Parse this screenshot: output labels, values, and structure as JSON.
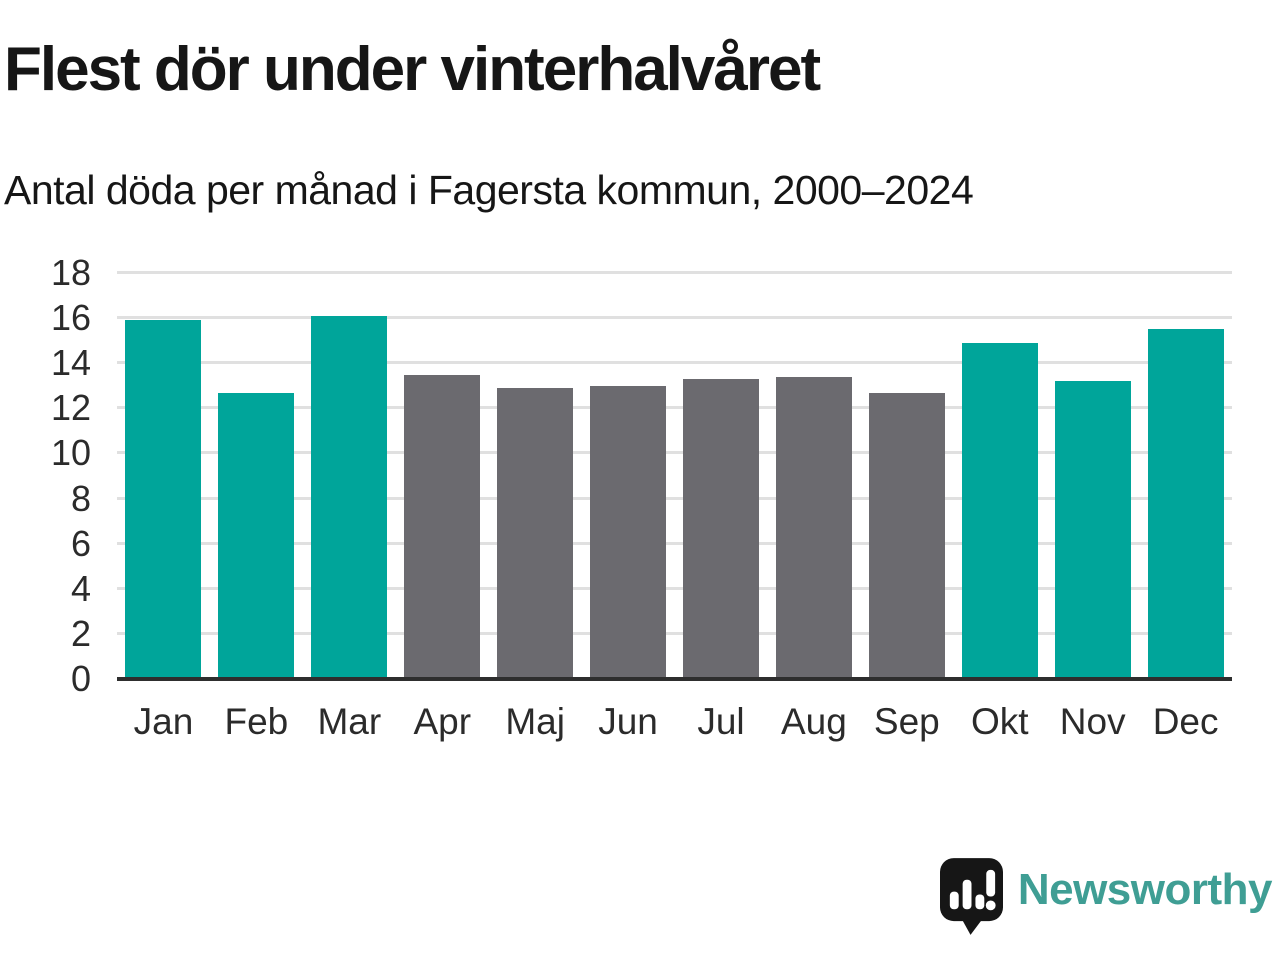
{
  "header": {
    "title": "Flest dör under vinterhalvåret",
    "subtitle": "Antal döda per månad i Fagersta kommun, 2000–2024"
  },
  "colors": {
    "teal": "#00a59a",
    "gray": "#6b6a6f",
    "grid": "#e0e0e0",
    "axis": "#2e2e2e",
    "text": "#161616",
    "brand": "#3f9e94"
  },
  "chart_data": {
    "type": "bar",
    "title": "Flest dör under vinterhalvåret",
    "subtitle": "Antal döda per månad i Fagersta kommun, 2000–2024",
    "categories": [
      "Jan",
      "Feb",
      "Mar",
      "Apr",
      "Maj",
      "Jun",
      "Jul",
      "Aug",
      "Sep",
      "Okt",
      "Nov",
      "Dec"
    ],
    "values": [
      15.9,
      12.7,
      16.1,
      13.5,
      12.9,
      13.0,
      13.3,
      13.4,
      12.7,
      14.9,
      13.2,
      15.5
    ],
    "bar_colors": [
      "teal",
      "teal",
      "teal",
      "gray",
      "gray",
      "gray",
      "gray",
      "gray",
      "gray",
      "teal",
      "teal",
      "teal"
    ],
    "highlight_meaning": "winter-half-year months in teal, summer-half-year months in gray",
    "xlabel": "",
    "ylabel": "",
    "ylim": [
      0,
      18
    ],
    "ytick_step": 2,
    "grid": true,
    "legend_position": "none"
  },
  "footer": {
    "brand_name": "Newsworthy",
    "logo_icon": "bar-chart-speech-bubble-icon"
  }
}
